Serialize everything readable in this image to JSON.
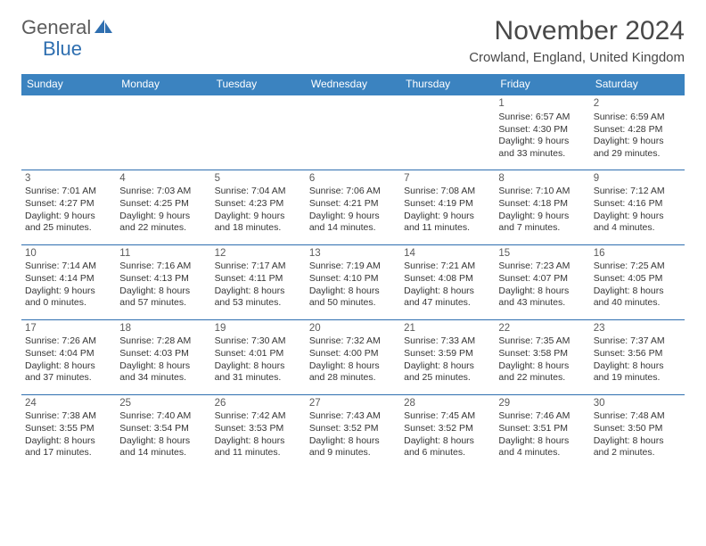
{
  "logo": {
    "text1": "General",
    "text2": "Blue"
  },
  "title": "November 2024",
  "location": "Crowland, England, United Kingdom",
  "colors": {
    "header_bg": "#3b83c0",
    "header_text": "#ffffff",
    "divider": "#2f6fb0",
    "text": "#333333",
    "logo_gray": "#5c5c5c",
    "logo_blue": "#2f6fb0",
    "page_bg": "#ffffff"
  },
  "daynames": [
    "Sunday",
    "Monday",
    "Tuesday",
    "Wednesday",
    "Thursday",
    "Friday",
    "Saturday"
  ],
  "weeks": [
    [
      {},
      {},
      {},
      {},
      {},
      {
        "n": "1",
        "sr": "Sunrise: 6:57 AM",
        "ss": "Sunset: 4:30 PM",
        "d1": "Daylight: 9 hours",
        "d2": "and 33 minutes."
      },
      {
        "n": "2",
        "sr": "Sunrise: 6:59 AM",
        "ss": "Sunset: 4:28 PM",
        "d1": "Daylight: 9 hours",
        "d2": "and 29 minutes."
      }
    ],
    [
      {
        "n": "3",
        "sr": "Sunrise: 7:01 AM",
        "ss": "Sunset: 4:27 PM",
        "d1": "Daylight: 9 hours",
        "d2": "and 25 minutes."
      },
      {
        "n": "4",
        "sr": "Sunrise: 7:03 AM",
        "ss": "Sunset: 4:25 PM",
        "d1": "Daylight: 9 hours",
        "d2": "and 22 minutes."
      },
      {
        "n": "5",
        "sr": "Sunrise: 7:04 AM",
        "ss": "Sunset: 4:23 PM",
        "d1": "Daylight: 9 hours",
        "d2": "and 18 minutes."
      },
      {
        "n": "6",
        "sr": "Sunrise: 7:06 AM",
        "ss": "Sunset: 4:21 PM",
        "d1": "Daylight: 9 hours",
        "d2": "and 14 minutes."
      },
      {
        "n": "7",
        "sr": "Sunrise: 7:08 AM",
        "ss": "Sunset: 4:19 PM",
        "d1": "Daylight: 9 hours",
        "d2": "and 11 minutes."
      },
      {
        "n": "8",
        "sr": "Sunrise: 7:10 AM",
        "ss": "Sunset: 4:18 PM",
        "d1": "Daylight: 9 hours",
        "d2": "and 7 minutes."
      },
      {
        "n": "9",
        "sr": "Sunrise: 7:12 AM",
        "ss": "Sunset: 4:16 PM",
        "d1": "Daylight: 9 hours",
        "d2": "and 4 minutes."
      }
    ],
    [
      {
        "n": "10",
        "sr": "Sunrise: 7:14 AM",
        "ss": "Sunset: 4:14 PM",
        "d1": "Daylight: 9 hours",
        "d2": "and 0 minutes."
      },
      {
        "n": "11",
        "sr": "Sunrise: 7:16 AM",
        "ss": "Sunset: 4:13 PM",
        "d1": "Daylight: 8 hours",
        "d2": "and 57 minutes."
      },
      {
        "n": "12",
        "sr": "Sunrise: 7:17 AM",
        "ss": "Sunset: 4:11 PM",
        "d1": "Daylight: 8 hours",
        "d2": "and 53 minutes."
      },
      {
        "n": "13",
        "sr": "Sunrise: 7:19 AM",
        "ss": "Sunset: 4:10 PM",
        "d1": "Daylight: 8 hours",
        "d2": "and 50 minutes."
      },
      {
        "n": "14",
        "sr": "Sunrise: 7:21 AM",
        "ss": "Sunset: 4:08 PM",
        "d1": "Daylight: 8 hours",
        "d2": "and 47 minutes."
      },
      {
        "n": "15",
        "sr": "Sunrise: 7:23 AM",
        "ss": "Sunset: 4:07 PM",
        "d1": "Daylight: 8 hours",
        "d2": "and 43 minutes."
      },
      {
        "n": "16",
        "sr": "Sunrise: 7:25 AM",
        "ss": "Sunset: 4:05 PM",
        "d1": "Daylight: 8 hours",
        "d2": "and 40 minutes."
      }
    ],
    [
      {
        "n": "17",
        "sr": "Sunrise: 7:26 AM",
        "ss": "Sunset: 4:04 PM",
        "d1": "Daylight: 8 hours",
        "d2": "and 37 minutes."
      },
      {
        "n": "18",
        "sr": "Sunrise: 7:28 AM",
        "ss": "Sunset: 4:03 PM",
        "d1": "Daylight: 8 hours",
        "d2": "and 34 minutes."
      },
      {
        "n": "19",
        "sr": "Sunrise: 7:30 AM",
        "ss": "Sunset: 4:01 PM",
        "d1": "Daylight: 8 hours",
        "d2": "and 31 minutes."
      },
      {
        "n": "20",
        "sr": "Sunrise: 7:32 AM",
        "ss": "Sunset: 4:00 PM",
        "d1": "Daylight: 8 hours",
        "d2": "and 28 minutes."
      },
      {
        "n": "21",
        "sr": "Sunrise: 7:33 AM",
        "ss": "Sunset: 3:59 PM",
        "d1": "Daylight: 8 hours",
        "d2": "and 25 minutes."
      },
      {
        "n": "22",
        "sr": "Sunrise: 7:35 AM",
        "ss": "Sunset: 3:58 PM",
        "d1": "Daylight: 8 hours",
        "d2": "and 22 minutes."
      },
      {
        "n": "23",
        "sr": "Sunrise: 7:37 AM",
        "ss": "Sunset: 3:56 PM",
        "d1": "Daylight: 8 hours",
        "d2": "and 19 minutes."
      }
    ],
    [
      {
        "n": "24",
        "sr": "Sunrise: 7:38 AM",
        "ss": "Sunset: 3:55 PM",
        "d1": "Daylight: 8 hours",
        "d2": "and 17 minutes."
      },
      {
        "n": "25",
        "sr": "Sunrise: 7:40 AM",
        "ss": "Sunset: 3:54 PM",
        "d1": "Daylight: 8 hours",
        "d2": "and 14 minutes."
      },
      {
        "n": "26",
        "sr": "Sunrise: 7:42 AM",
        "ss": "Sunset: 3:53 PM",
        "d1": "Daylight: 8 hours",
        "d2": "and 11 minutes."
      },
      {
        "n": "27",
        "sr": "Sunrise: 7:43 AM",
        "ss": "Sunset: 3:52 PM",
        "d1": "Daylight: 8 hours",
        "d2": "and 9 minutes."
      },
      {
        "n": "28",
        "sr": "Sunrise: 7:45 AM",
        "ss": "Sunset: 3:52 PM",
        "d1": "Daylight: 8 hours",
        "d2": "and 6 minutes."
      },
      {
        "n": "29",
        "sr": "Sunrise: 7:46 AM",
        "ss": "Sunset: 3:51 PM",
        "d1": "Daylight: 8 hours",
        "d2": "and 4 minutes."
      },
      {
        "n": "30",
        "sr": "Sunrise: 7:48 AM",
        "ss": "Sunset: 3:50 PM",
        "d1": "Daylight: 8 hours",
        "d2": "and 2 minutes."
      }
    ]
  ]
}
